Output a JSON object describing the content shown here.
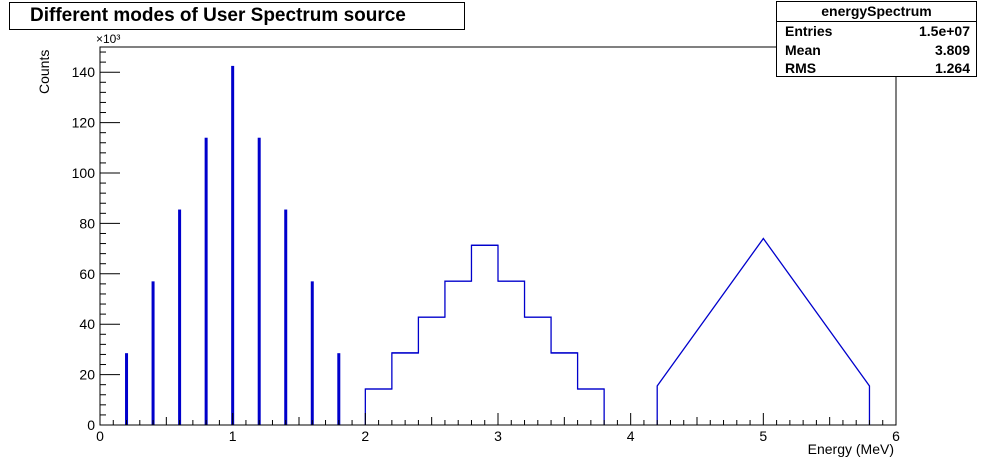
{
  "chart_data": {
    "type": "bar",
    "title": "Different modes of User Spectrum source",
    "xlabel": "Energy (MeV)",
    "ylabel": "Counts",
    "y_multiplier": "×10³",
    "xlim": [
      0,
      6
    ],
    "ylim": [
      0,
      150
    ],
    "x_ticks": [
      "0",
      "1",
      "2",
      "3",
      "4",
      "5",
      "6"
    ],
    "y_ticks": [
      "0",
      "20",
      "40",
      "60",
      "80",
      "100",
      "120",
      "140"
    ],
    "line_color": "#0000cc",
    "stats": {
      "name": "energySpectrum",
      "rows": [
        {
          "label": "Entries",
          "value": "1.5e+07"
        },
        {
          "label": "Mean",
          "value": "3.809"
        },
        {
          "label": "RMS",
          "value": "1.264"
        }
      ]
    },
    "series": [
      {
        "kind": "lines",
        "x": [
          0.2,
          0.4,
          0.6,
          0.8,
          1.0,
          1.2,
          1.4,
          1.6,
          1.8
        ],
        "values": [
          28.5,
          57,
          85.5,
          114,
          142.5,
          114,
          85.5,
          57,
          28.5
        ]
      },
      {
        "kind": "steps",
        "edges": [
          2.0,
          2.2,
          2.4,
          2.6,
          2.8,
          3.0,
          3.2,
          3.4,
          3.6,
          3.8
        ],
        "values": [
          14.3,
          28.6,
          42.8,
          57.1,
          71.3,
          57.1,
          42.8,
          28.6,
          14.3
        ]
      },
      {
        "kind": "triangle",
        "x": [
          4.2,
          5.0,
          5.8
        ],
        "values": [
          15.5,
          74,
          15.5
        ]
      }
    ]
  }
}
